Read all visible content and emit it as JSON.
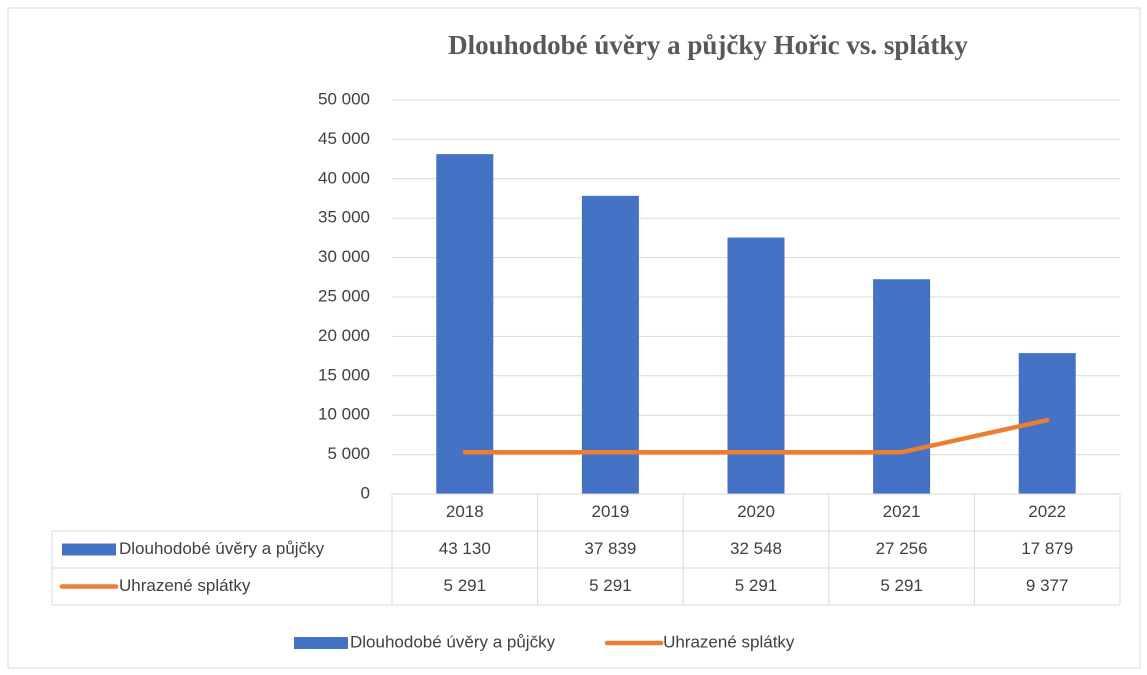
{
  "chart_data": {
    "type": "bar",
    "title": "Dlouhodobé úvěry a půjčky Hořic vs. splátky",
    "categories": [
      "2018",
      "2019",
      "2020",
      "2021",
      "2022"
    ],
    "series": [
      {
        "name": "Dlouhodobé úvěry a půjčky",
        "type": "bar",
        "color": "#4472c4",
        "values": [
          43130,
          37839,
          32548,
          27256,
          17879
        ],
        "value_labels": [
          "43 130",
          "37 839",
          "32 548",
          "27 256",
          "17 879"
        ]
      },
      {
        "name": "Uhrazené splátky",
        "type": "line",
        "color": "#ed7d31",
        "values": [
          5291,
          5291,
          5291,
          5291,
          9377
        ],
        "value_labels": [
          "5 291",
          "5 291",
          "5 291",
          "5 291",
          "9 377"
        ]
      }
    ],
    "ylim": [
      0,
      50000
    ],
    "yticks": [
      0,
      {
        "value": 5000,
        "label": "5 000"
      },
      {
        "value": 10000,
        "label": "10 000"
      },
      {
        "value": 15000,
        "label": "15 000"
      },
      {
        "value": 20000,
        "label": "20 000"
      },
      {
        "value": 25000,
        "label": "25 000"
      },
      {
        "value": 30000,
        "label": "30 000"
      },
      {
        "value": 35000,
        "label": "35 000"
      },
      {
        "value": 40000,
        "label": "40 000"
      },
      {
        "value": 45000,
        "label": "45 000"
      },
      {
        "value": 50000,
        "label": "50 000"
      }
    ],
    "grid": true,
    "legend": "bottom",
    "data_table": true
  }
}
